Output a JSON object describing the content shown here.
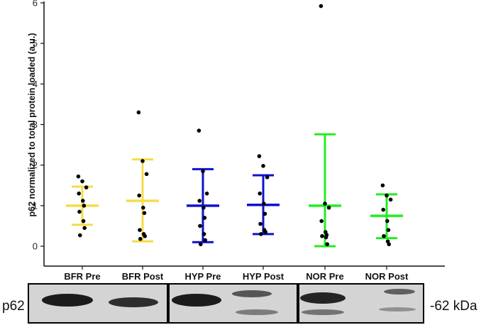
{
  "chart_data": {
    "type": "scatter",
    "title": "",
    "xlabel": "",
    "ylabel": "p62 normalized to total protein loaded (a.u.)",
    "ylim": [
      0,
      6
    ],
    "yticks": [
      "0",
      "1",
      "2",
      "3",
      "4",
      "5",
      "6"
    ],
    "grid": false,
    "categories": [
      "BFR Pre",
      "BFR Post",
      "HYP Pre",
      "HYP Post",
      "NOR Pre",
      "NOR Post"
    ],
    "colors": [
      "#f5dc4a",
      "#f5dc4a",
      "#1010d0",
      "#1010d0",
      "#22ee22",
      "#22ee22"
    ],
    "point_color": "#000000",
    "series": [
      {
        "category": "BFR Pre",
        "mean": 1.0,
        "lower": 0.53,
        "upper": 1.47,
        "points": [
          1.72,
          1.6,
          1.45,
          1.3,
          1.12,
          1.0,
          0.85,
          0.62,
          0.45,
          0.27
        ]
      },
      {
        "category": "BFR Post",
        "mean": 1.12,
        "lower": 0.12,
        "upper": 2.14,
        "points": [
          3.3,
          2.1,
          1.78,
          1.25,
          0.95,
          0.82,
          0.4,
          0.3,
          0.25,
          0.18
        ]
      },
      {
        "category": "HYP Pre",
        "mean": 1.0,
        "lower": 0.1,
        "upper": 1.9,
        "points": [
          2.85,
          1.85,
          1.3,
          1.12,
          0.95,
          0.7,
          0.5,
          0.3,
          0.15,
          0.05
        ]
      },
      {
        "category": "HYP Post",
        "mean": 1.02,
        "lower": 0.3,
        "upper": 1.75,
        "points": [
          2.22,
          1.98,
          1.7,
          1.3,
          1.05,
          0.8,
          0.55,
          0.4,
          0.35,
          0.3
        ]
      },
      {
        "category": "NOR Pre",
        "mean": 1.0,
        "lower": 0.0,
        "upper": 2.76,
        "points": [
          5.92,
          1.05,
          0.95,
          0.62,
          0.35,
          0.28,
          0.25,
          0.22,
          0.05
        ]
      },
      {
        "category": "NOR Post",
        "mean": 0.75,
        "lower": 0.2,
        "upper": 1.28,
        "points": [
          1.5,
          1.25,
          1.15,
          0.9,
          0.62,
          0.4,
          0.25,
          0.12,
          0.05
        ]
      }
    ]
  },
  "blot": {
    "label": "p62",
    "marker": "-62 kDa"
  }
}
